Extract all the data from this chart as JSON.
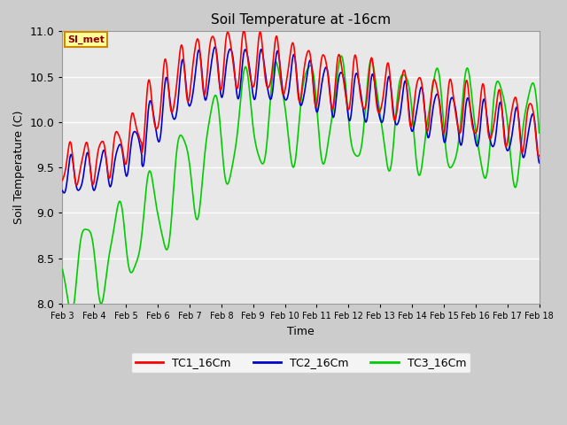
{
  "title": "Soil Temperature at -16cm",
  "xlabel": "Time",
  "ylabel": "Soil Temperature (C)",
  "ylim": [
    8.0,
    11.0
  ],
  "xlim_days": [
    3,
    18
  ],
  "bg_color": "#e8e8e8",
  "grid_color": "#ffffff",
  "line_colors": [
    "#ff0000",
    "#0000cc",
    "#00cc00"
  ],
  "line_labels": [
    "TC1_16Cm",
    "TC2_16Cm",
    "TC3_16Cm"
  ],
  "annotation_text": "SI_met",
  "annotation_bg": "#ffff99",
  "annotation_border": "#cc8800",
  "yticks": [
    8.0,
    8.5,
    9.0,
    9.5,
    10.0,
    10.5,
    11.0
  ],
  "xtick_labels": [
    "Feb 3",
    "Feb 4",
    "Feb 5",
    "Feb 6",
    "Feb 7",
    "Feb 8",
    "Feb 9",
    "Feb 10",
    "Feb 11",
    "Feb 12",
    "Feb 13",
    "Feb 14",
    "Feb 15",
    "Feb 16",
    "Feb 17",
    "Feb 18"
  ],
  "linewidth": 1.2
}
